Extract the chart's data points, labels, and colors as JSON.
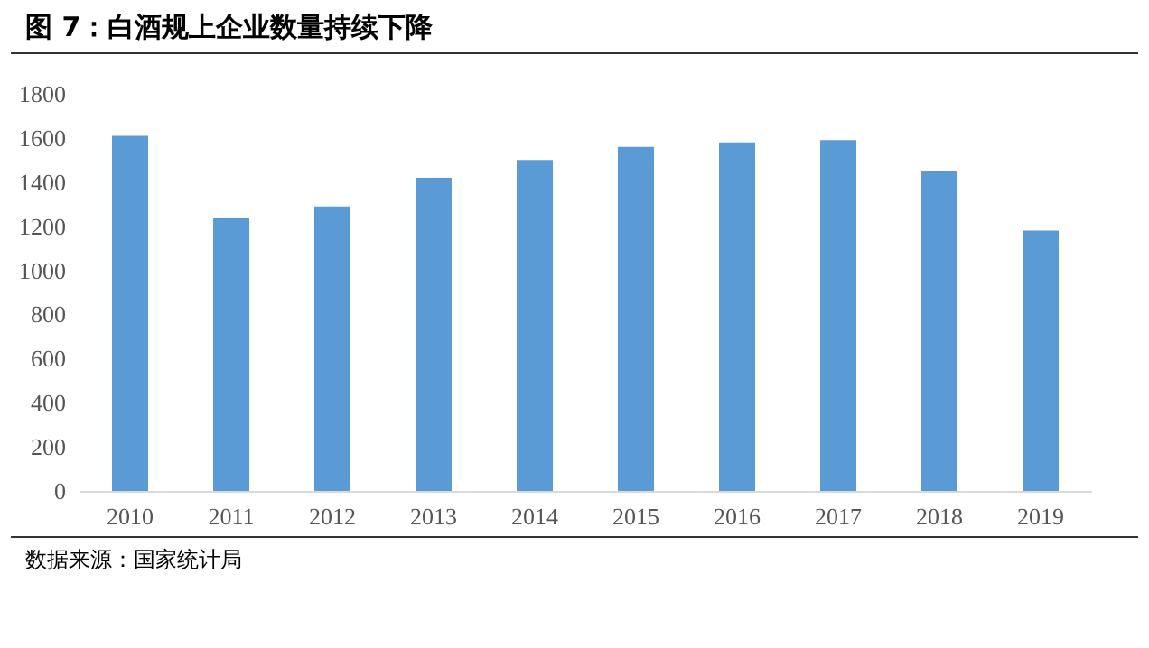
{
  "chart_data": {
    "type": "bar",
    "title": "图 7：白酒规上企业数量持续下降",
    "categories": [
      "2010",
      "2011",
      "2012",
      "2013",
      "2014",
      "2015",
      "2016",
      "2017",
      "2018",
      "2019"
    ],
    "values": [
      1610,
      1240,
      1290,
      1420,
      1500,
      1560,
      1580,
      1590,
      1450,
      1180
    ],
    "color": "#5b9bd5",
    "ylim": [
      0,
      1800
    ],
    "yticks": [
      0,
      200,
      400,
      600,
      800,
      1000,
      1200,
      1400,
      1600,
      1800
    ],
    "annotations": [
      "数据来源：国家统计局"
    ]
  }
}
